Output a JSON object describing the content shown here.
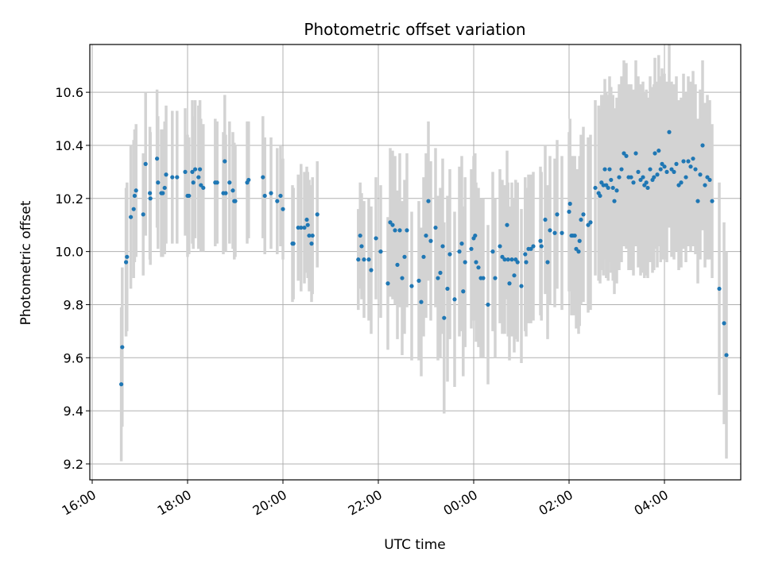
{
  "chart_data": {
    "type": "scatter",
    "title": "Photometric offset variation",
    "xlabel": "UTC time",
    "ylabel": "Photometric offset",
    "x_unit": "hours since 16:00",
    "xlim": [
      -0.05,
      13.6
    ],
    "ylim": [
      9.14,
      10.78
    ],
    "grid": true,
    "x_ticks": [
      {
        "value": 0,
        "label": "16:00"
      },
      {
        "value": 2,
        "label": "18:00"
      },
      {
        "value": 4,
        "label": "20:00"
      },
      {
        "value": 6,
        "label": "22:00"
      },
      {
        "value": 8,
        "label": "00:00"
      },
      {
        "value": 10,
        "label": "02:00"
      },
      {
        "value": 12,
        "label": "04:00"
      }
    ],
    "y_ticks": [
      {
        "value": 9.2,
        "label": "9.2"
      },
      {
        "value": 9.4,
        "label": "9.4"
      },
      {
        "value": 9.6,
        "label": "9.6"
      },
      {
        "value": 9.8,
        "label": "9.8"
      },
      {
        "value": 10.0,
        "label": "10.0"
      },
      {
        "value": 10.2,
        "label": "10.2"
      },
      {
        "value": 10.4,
        "label": "10.4"
      },
      {
        "value": 10.6,
        "label": "10.6"
      }
    ],
    "marker_color": "#1f77b4",
    "errorbar_color": "#d3d3d3",
    "series": [
      {
        "name": "offset",
        "points": [
          [
            0.61,
            9.5,
            0.29
          ],
          [
            0.63,
            9.64,
            0.3
          ],
          [
            0.71,
            9.96,
            0.28
          ],
          [
            0.73,
            9.98,
            0.28
          ],
          [
            0.81,
            10.13,
            0.27
          ],
          [
            0.87,
            10.16,
            0.26
          ],
          [
            0.89,
            10.21,
            0.25
          ],
          [
            0.92,
            10.23,
            0.25
          ],
          [
            1.07,
            10.14,
            0.23
          ],
          [
            1.12,
            10.33,
            0.27
          ],
          [
            1.21,
            10.22,
            0.25
          ],
          [
            1.22,
            10.2,
            0.25
          ],
          [
            1.36,
            10.35,
            0.26
          ],
          [
            1.38,
            10.26,
            0.25
          ],
          [
            1.45,
            10.22,
            0.24
          ],
          [
            1.48,
            10.22,
            0.24
          ],
          [
            1.52,
            10.24,
            0.25
          ],
          [
            1.55,
            10.29,
            0.26
          ],
          [
            1.68,
            10.28,
            0.25
          ],
          [
            1.78,
            10.28,
            0.25
          ],
          [
            1.95,
            10.3,
            0.24
          ],
          [
            2.0,
            10.21,
            0.23
          ],
          [
            2.03,
            10.21,
            0.22
          ],
          [
            2.1,
            10.3,
            0.27
          ],
          [
            2.12,
            10.26,
            0.25
          ],
          [
            2.16,
            10.31,
            0.26
          ],
          [
            2.23,
            10.28,
            0.27
          ],
          [
            2.26,
            10.31,
            0.26
          ],
          [
            2.28,
            10.25,
            0.25
          ],
          [
            2.33,
            10.24,
            0.24
          ],
          [
            2.58,
            10.26,
            0.24
          ],
          [
            2.62,
            10.26,
            0.23
          ],
          [
            2.75,
            10.22,
            0.23
          ],
          [
            2.78,
            10.34,
            0.25
          ],
          [
            2.8,
            10.22,
            0.22
          ],
          [
            2.88,
            10.26,
            0.23
          ],
          [
            2.95,
            10.23,
            0.22
          ],
          [
            2.98,
            10.19,
            0.22
          ],
          [
            3.0,
            10.19,
            0.21
          ],
          [
            3.25,
            10.26,
            0.23
          ],
          [
            3.28,
            10.27,
            0.22
          ],
          [
            3.58,
            10.28,
            0.23
          ],
          [
            3.62,
            10.21,
            0.22
          ],
          [
            3.75,
            10.22,
            0.21
          ],
          [
            3.88,
            10.19,
            0.2
          ],
          [
            3.95,
            10.21,
            0.19
          ],
          [
            4.0,
            10.16,
            0.19
          ],
          [
            4.2,
            10.03,
            0.22
          ],
          [
            4.22,
            10.03,
            0.21
          ],
          [
            4.32,
            10.09,
            0.2
          ],
          [
            4.38,
            10.09,
            0.24
          ],
          [
            4.45,
            10.09,
            0.21
          ],
          [
            4.5,
            10.12,
            0.2
          ],
          [
            4.52,
            10.1,
            0.2
          ],
          [
            4.55,
            10.06,
            0.21
          ],
          [
            4.6,
            10.03,
            0.22
          ],
          [
            4.62,
            10.06,
            0.22
          ],
          [
            4.72,
            10.14,
            0.2
          ],
          [
            5.58,
            9.97,
            0.19
          ],
          [
            5.62,
            10.06,
            0.2
          ],
          [
            5.65,
            10.02,
            0.2
          ],
          [
            5.7,
            9.97,
            0.22
          ],
          [
            5.8,
            9.97,
            0.23
          ],
          [
            5.85,
            9.93,
            0.24
          ],
          [
            5.95,
            10.05,
            0.23
          ],
          [
            6.05,
            10.0,
            0.25
          ],
          [
            6.2,
            9.88,
            0.25
          ],
          [
            6.25,
            10.11,
            0.28
          ],
          [
            6.3,
            10.1,
            0.28
          ],
          [
            6.35,
            10.08,
            0.28
          ],
          [
            6.4,
            9.95,
            0.28
          ],
          [
            6.45,
            10.08,
            0.29
          ],
          [
            6.5,
            9.9,
            0.29
          ],
          [
            6.55,
            9.98,
            0.29
          ],
          [
            6.6,
            10.08,
            0.29
          ],
          [
            6.7,
            9.87,
            0.28
          ],
          [
            6.85,
            9.89,
            0.3
          ],
          [
            6.9,
            9.81,
            0.28
          ],
          [
            6.95,
            9.98,
            0.3
          ],
          [
            7.0,
            10.06,
            0.31
          ],
          [
            7.05,
            10.19,
            0.3
          ],
          [
            7.1,
            10.04,
            0.3
          ],
          [
            7.2,
            10.09,
            0.3
          ],
          [
            7.25,
            9.9,
            0.31
          ],
          [
            7.3,
            9.92,
            0.32
          ],
          [
            7.35,
            10.02,
            0.33
          ],
          [
            7.38,
            9.75,
            0.36
          ],
          [
            7.45,
            9.86,
            0.35
          ],
          [
            7.5,
            9.99,
            0.32
          ],
          [
            7.6,
            9.82,
            0.33
          ],
          [
            7.7,
            10.0,
            0.32
          ],
          [
            7.75,
            10.03,
            0.33
          ],
          [
            7.78,
            9.85,
            0.32
          ],
          [
            7.82,
            9.96,
            0.32
          ],
          [
            7.95,
            10.01,
            0.3
          ],
          [
            8.0,
            10.05,
            0.31
          ],
          [
            8.03,
            10.06,
            0.31
          ],
          [
            8.05,
            9.96,
            0.3
          ],
          [
            8.1,
            9.94,
            0.3
          ],
          [
            8.15,
            9.9,
            0.3
          ],
          [
            8.2,
            9.9,
            0.3
          ],
          [
            8.3,
            9.8,
            0.3
          ],
          [
            8.4,
            10.0,
            0.3
          ],
          [
            8.45,
            9.9,
            0.3
          ],
          [
            8.55,
            10.02,
            0.29
          ],
          [
            8.6,
            9.98,
            0.29
          ],
          [
            8.65,
            9.97,
            0.28
          ],
          [
            8.7,
            10.1,
            0.28
          ],
          [
            8.72,
            9.97,
            0.29
          ],
          [
            8.75,
            9.88,
            0.29
          ],
          [
            8.8,
            9.97,
            0.29
          ],
          [
            8.85,
            9.91,
            0.29
          ],
          [
            8.88,
            9.97,
            0.3
          ],
          [
            8.92,
            9.96,
            0.3
          ],
          [
            9.0,
            9.87,
            0.29
          ],
          [
            9.08,
            9.99,
            0.29
          ],
          [
            9.1,
            9.96,
            0.28
          ],
          [
            9.15,
            10.01,
            0.28
          ],
          [
            9.2,
            10.01,
            0.28
          ],
          [
            9.25,
            10.02,
            0.28
          ],
          [
            9.4,
            10.04,
            0.28
          ],
          [
            9.42,
            10.02,
            0.28
          ],
          [
            9.5,
            10.12,
            0.28
          ],
          [
            9.55,
            9.96,
            0.29
          ],
          [
            9.6,
            10.08,
            0.28
          ],
          [
            9.7,
            10.07,
            0.28
          ],
          [
            9.75,
            10.14,
            0.28
          ],
          [
            9.85,
            10.07,
            0.29
          ],
          [
            10.0,
            10.15,
            0.3
          ],
          [
            10.02,
            10.18,
            0.32
          ],
          [
            10.05,
            10.06,
            0.3
          ],
          [
            10.08,
            10.06,
            0.3
          ],
          [
            10.12,
            10.06,
            0.3
          ],
          [
            10.15,
            10.01,
            0.3
          ],
          [
            10.2,
            10.0,
            0.31
          ],
          [
            10.22,
            10.04,
            0.32
          ],
          [
            10.25,
            10.12,
            0.32
          ],
          [
            10.3,
            10.14,
            0.33
          ],
          [
            10.4,
            10.1,
            0.33
          ],
          [
            10.45,
            10.11,
            0.33
          ],
          [
            10.55,
            10.24,
            0.33
          ],
          [
            10.62,
            10.22,
            0.33
          ],
          [
            10.65,
            10.21,
            0.33
          ],
          [
            10.68,
            10.26,
            0.33
          ],
          [
            10.72,
            10.25,
            0.34
          ],
          [
            10.75,
            10.31,
            0.34
          ],
          [
            10.78,
            10.25,
            0.35
          ],
          [
            10.82,
            10.24,
            0.35
          ],
          [
            10.85,
            10.31,
            0.35
          ],
          [
            10.88,
            10.27,
            0.35
          ],
          [
            10.92,
            10.24,
            0.35
          ],
          [
            10.95,
            10.19,
            0.35
          ],
          [
            11.0,
            10.23,
            0.35
          ],
          [
            11.05,
            10.28,
            0.35
          ],
          [
            11.1,
            10.31,
            0.35
          ],
          [
            11.15,
            10.37,
            0.35
          ],
          [
            11.2,
            10.36,
            0.35
          ],
          [
            11.25,
            10.28,
            0.35
          ],
          [
            11.3,
            10.28,
            0.35
          ],
          [
            11.35,
            10.26,
            0.35
          ],
          [
            11.4,
            10.37,
            0.35
          ],
          [
            11.45,
            10.3,
            0.36
          ],
          [
            11.5,
            10.27,
            0.36
          ],
          [
            11.55,
            10.28,
            0.36
          ],
          [
            11.58,
            10.25,
            0.35
          ],
          [
            11.62,
            10.26,
            0.35
          ],
          [
            11.65,
            10.24,
            0.34
          ],
          [
            11.7,
            10.31,
            0.35
          ],
          [
            11.75,
            10.27,
            0.35
          ],
          [
            11.78,
            10.28,
            0.35
          ],
          [
            11.8,
            10.37,
            0.36
          ],
          [
            11.85,
            10.29,
            0.35
          ],
          [
            11.88,
            10.38,
            0.36
          ],
          [
            11.92,
            10.31,
            0.35
          ],
          [
            11.95,
            10.33,
            0.36
          ],
          [
            12.0,
            10.32,
            0.35
          ],
          [
            12.05,
            10.3,
            0.34
          ],
          [
            12.1,
            10.45,
            0.36
          ],
          [
            12.15,
            10.31,
            0.33
          ],
          [
            12.2,
            10.3,
            0.33
          ],
          [
            12.25,
            10.33,
            0.33
          ],
          [
            12.3,
            10.25,
            0.32
          ],
          [
            12.35,
            10.26,
            0.32
          ],
          [
            12.4,
            10.34,
            0.33
          ],
          [
            12.45,
            10.28,
            0.32
          ],
          [
            12.5,
            10.34,
            0.32
          ],
          [
            12.55,
            10.32,
            0.32
          ],
          [
            12.6,
            10.35,
            0.33
          ],
          [
            12.65,
            10.31,
            0.32
          ],
          [
            12.7,
            10.19,
            0.31
          ],
          [
            12.75,
            10.29,
            0.32
          ],
          [
            12.8,
            10.4,
            0.32
          ],
          [
            12.85,
            10.25,
            0.31
          ],
          [
            12.9,
            10.28,
            0.31
          ],
          [
            12.95,
            10.27,
            0.3
          ],
          [
            13.0,
            10.19,
            0.29
          ],
          [
            13.15,
            9.86,
            0.4
          ],
          [
            13.25,
            9.73,
            0.38
          ],
          [
            13.3,
            9.61,
            0.39
          ]
        ]
      }
    ]
  }
}
